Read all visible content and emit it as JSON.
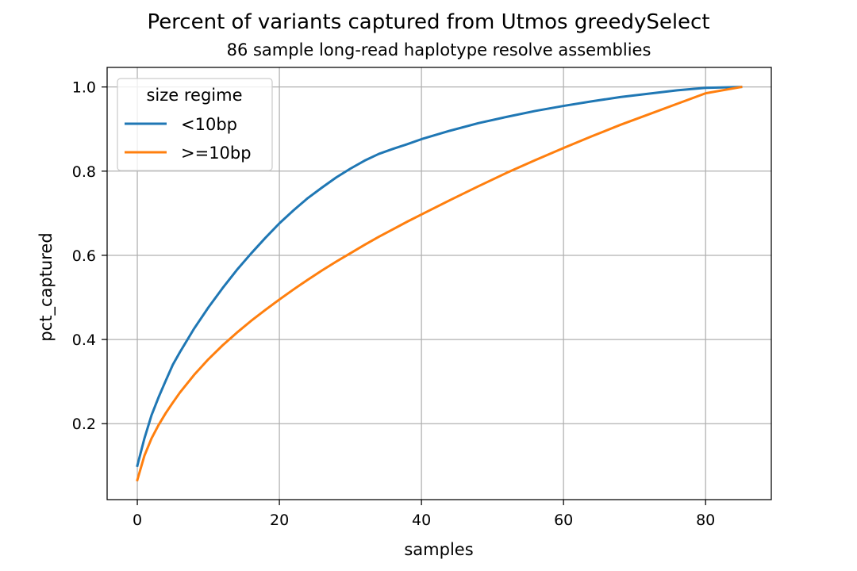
{
  "chart_data": {
    "type": "line",
    "title": "Percent of variants captured from Utmos greedySelect",
    "subtitle": "86 sample long-read haplotype resolve assemblies",
    "xlabel": "samples",
    "ylabel": "pct_captured",
    "xlim": [
      -4.25,
      89.25
    ],
    "ylim": [
      0.0195,
      1.0465
    ],
    "xticks": [
      0,
      20,
      40,
      60,
      80
    ],
    "xtick_labels": [
      "0",
      "20",
      "40",
      "60",
      "80"
    ],
    "yticks": [
      0.2,
      0.4,
      0.6,
      0.8,
      1.0
    ],
    "ytick_labels": [
      "0.2",
      "0.4",
      "0.6",
      "0.8",
      "1.0"
    ],
    "grid": true,
    "legend": {
      "title": "size regime",
      "placement": "top-left"
    },
    "series": [
      {
        "name": "<10bp",
        "color": "#1f77b4",
        "x": [
          0,
          1,
          2,
          3,
          4,
          5,
          6,
          8,
          10,
          12,
          14,
          16,
          18,
          20,
          22,
          24,
          26,
          28,
          30,
          32,
          34,
          36,
          38,
          40,
          44,
          48,
          52,
          56,
          60,
          64,
          68,
          72,
          76,
          80,
          85
        ],
        "y": [
          0.1,
          0.165,
          0.22,
          0.263,
          0.302,
          0.34,
          0.37,
          0.426,
          0.476,
          0.522,
          0.565,
          0.604,
          0.641,
          0.676,
          0.707,
          0.736,
          0.761,
          0.785,
          0.806,
          0.825,
          0.841,
          0.853,
          0.864,
          0.876,
          0.896,
          0.914,
          0.929,
          0.943,
          0.955,
          0.966,
          0.976,
          0.984,
          0.992,
          0.998,
          1.0
        ]
      },
      {
        "name": ">=10bp",
        "color": "#ff7f0e",
        "x": [
          0,
          1,
          2,
          3,
          4,
          5,
          6,
          8,
          10,
          12,
          14,
          16,
          18,
          20,
          22,
          24,
          26,
          28,
          30,
          32,
          34,
          36,
          38,
          40,
          44,
          48,
          52,
          56,
          60,
          64,
          68,
          72,
          76,
          80,
          85
        ],
        "y": [
          0.066,
          0.124,
          0.165,
          0.197,
          0.225,
          0.25,
          0.274,
          0.316,
          0.353,
          0.386,
          0.416,
          0.444,
          0.47,
          0.495,
          0.519,
          0.542,
          0.564,
          0.585,
          0.605,
          0.625,
          0.644,
          0.662,
          0.68,
          0.697,
          0.731,
          0.764,
          0.796,
          0.826,
          0.855,
          0.883,
          0.91,
          0.935,
          0.96,
          0.985,
          1.0
        ]
      }
    ]
  }
}
